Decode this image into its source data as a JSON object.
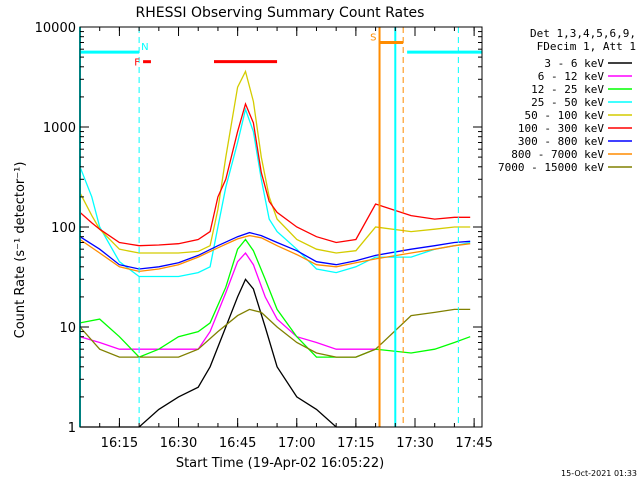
{
  "chart_data": {
    "type": "line",
    "title": "RHESSI Observing Summary Count Rates",
    "xlabel": "Start Time (19-Apr-02 16:05:22)",
    "ylabel": "Count Rate (s⁻¹ detector⁻¹)",
    "y_scale": "log",
    "ylim": [
      1,
      10000
    ],
    "xlim": [
      "16:05",
      "17:47"
    ],
    "x_ticks": [
      "16:15",
      "16:30",
      "16:45",
      "17:00",
      "17:15",
      "17:30",
      "17:45"
    ],
    "y_ticks": [
      "1",
      "10",
      "100",
      "1000",
      "10000"
    ],
    "legend_header": [
      "Det 1,3,4,5,6,9,",
      "FDecim 1, Att 1"
    ],
    "legend_position": "right",
    "timestamp": "15-Oct-2021 01:33",
    "series": [
      {
        "name": "3 - 6 keV",
        "color": "#000000",
        "x": [
          "16:05",
          "16:10",
          "16:15",
          "16:20",
          "16:25",
          "16:30",
          "16:35",
          "16:38",
          "16:42",
          "16:45",
          "16:47",
          "16:49",
          "16:52",
          "16:55",
          "17:00",
          "17:05",
          "17:10",
          "17:15",
          "17:20"
        ],
        "y": [
          1,
          1,
          1,
          1,
          1.5,
          2,
          2.5,
          4,
          10,
          20,
          30,
          24,
          10,
          4,
          2,
          1.5,
          1,
          1,
          1
        ]
      },
      {
        "name": "6 - 12 keV",
        "color": "#ff00ff",
        "x": [
          "16:05",
          "16:10",
          "16:15",
          "16:20",
          "16:25",
          "16:30",
          "16:35",
          "16:38",
          "16:42",
          "16:45",
          "16:47",
          "16:49",
          "16:52",
          "16:55",
          "17:00",
          "17:05",
          "17:10",
          "17:15",
          "17:20"
        ],
        "y": [
          8,
          7,
          6,
          6,
          6,
          6,
          6,
          9,
          22,
          45,
          55,
          42,
          20,
          12,
          8,
          7,
          6,
          6,
          6
        ]
      },
      {
        "name": "12 - 25 keV",
        "color": "#00ff00",
        "x": [
          "16:05",
          "16:10",
          "16:15",
          "16:20",
          "16:25",
          "16:30",
          "16:35",
          "16:38",
          "16:42",
          "16:45",
          "16:47",
          "16:49",
          "16:52",
          "16:55",
          "17:00",
          "17:05",
          "17:10",
          "17:15",
          "17:20",
          "17:29",
          "17:35",
          "17:40",
          "17:44"
        ],
        "y": [
          11,
          12,
          8,
          5,
          6,
          8,
          9,
          11,
          25,
          60,
          75,
          58,
          30,
          15,
          8,
          5,
          5,
          5,
          6,
          5.5,
          6,
          7,
          8
        ]
      },
      {
        "name": "25 - 50 keV",
        "color": "#00ffff",
        "x": [
          "16:05",
          "16:08",
          "16:10",
          "16:15",
          "16:20",
          "16:25",
          "16:30",
          "16:35",
          "16:38",
          "16:40",
          "16:42",
          "16:45",
          "16:47",
          "16:49",
          "16:51",
          "16:53",
          "16:55",
          "17:00",
          "17:05",
          "17:10",
          "17:15",
          "17:20",
          "17:29",
          "17:35",
          "17:40",
          "17:44"
        ],
        "y": [
          400,
          200,
          100,
          45,
          32,
          32,
          32,
          35,
          40,
          100,
          250,
          700,
          1500,
          900,
          300,
          120,
          90,
          60,
          38,
          35,
          40,
          50,
          50,
          60,
          65,
          70
        ]
      },
      {
        "name": "50 - 100 keV",
        "color": "#d4cc00",
        "x": [
          "16:05",
          "16:08",
          "16:10",
          "16:15",
          "16:20",
          "16:25",
          "16:30",
          "16:35",
          "16:38",
          "16:40",
          "16:42",
          "16:45",
          "16:47",
          "16:49",
          "16:51",
          "16:53",
          "16:55",
          "17:00",
          "17:05",
          "17:10",
          "17:15",
          "17:20",
          "17:29",
          "17:35",
          "17:40",
          "17:44"
        ],
        "y": [
          220,
          130,
          95,
          60,
          55,
          55,
          55,
          57,
          65,
          150,
          500,
          2500,
          3600,
          1800,
          500,
          200,
          120,
          75,
          60,
          55,
          58,
          100,
          90,
          95,
          100,
          100
        ]
      },
      {
        "name": "100 - 300 keV",
        "color": "#ff0000",
        "x": [
          "16:05",
          "16:08",
          "16:10",
          "16:15",
          "16:20",
          "16:25",
          "16:30",
          "16:35",
          "16:38",
          "16:40",
          "16:42",
          "16:45",
          "16:47",
          "16:49",
          "16:51",
          "16:53",
          "16:55",
          "17:00",
          "17:05",
          "17:10",
          "17:15",
          "17:20",
          "17:29",
          "17:35",
          "17:40",
          "17:44"
        ],
        "y": [
          140,
          110,
          95,
          70,
          65,
          66,
          68,
          75,
          90,
          200,
          300,
          900,
          1700,
          1100,
          350,
          180,
          140,
          100,
          80,
          70,
          75,
          170,
          130,
          120,
          125,
          125
        ]
      },
      {
        "name": "300 - 800 keV",
        "color": "#0000ff",
        "x": [
          "16:05",
          "16:10",
          "16:15",
          "16:20",
          "16:25",
          "16:30",
          "16:35",
          "16:40",
          "16:45",
          "16:48",
          "16:51",
          "16:55",
          "17:00",
          "17:05",
          "17:10",
          "17:15",
          "17:20",
          "17:29",
          "17:35",
          "17:40",
          "17:44"
        ],
        "y": [
          80,
          60,
          42,
          38,
          40,
          44,
          52,
          65,
          80,
          88,
          82,
          70,
          58,
          45,
          42,
          46,
          52,
          60,
          65,
          70,
          72
        ]
      },
      {
        "name": "800 - 7000 keV",
        "color": "#ff8c00",
        "x": [
          "16:05",
          "16:10",
          "16:15",
          "16:20",
          "16:25",
          "16:30",
          "16:35",
          "16:40",
          "16:45",
          "16:48",
          "16:51",
          "16:55",
          "17:00",
          "17:05",
          "17:10",
          "17:15",
          "17:20",
          "17:29",
          "17:35",
          "17:40",
          "17:44"
        ],
        "y": [
          75,
          55,
          40,
          36,
          38,
          42,
          50,
          62,
          76,
          82,
          78,
          65,
          53,
          42,
          40,
          44,
          48,
          55,
          60,
          65,
          68
        ]
      },
      {
        "name": "7000 - 15000 keV",
        "color": "#808000",
        "x": [
          "16:05",
          "16:10",
          "16:15",
          "16:20",
          "16:25",
          "16:30",
          "16:35",
          "16:40",
          "16:45",
          "16:48",
          "16:51",
          "16:55",
          "17:00",
          "17:05",
          "17:10",
          "17:15",
          "17:20",
          "17:29",
          "17:35",
          "17:40",
          "17:44"
        ],
        "y": [
          10,
          6,
          5,
          5,
          5,
          5,
          6,
          9,
          13,
          15,
          14,
          10,
          7,
          5.5,
          5,
          5,
          6,
          13,
          14,
          15,
          15
        ]
      }
    ],
    "flag_bars": [
      {
        "label": "N",
        "color": "#00ffff",
        "x": [
          "16:05",
          "16:20"
        ],
        "y": 5600
      },
      {
        "label": "F",
        "color": "#ff0000",
        "x": [
          "16:21",
          "16:23"
        ],
        "y": 4500
      },
      {
        "label": "",
        "color": "#ff0000",
        "x": [
          "16:39",
          "16:55"
        ],
        "y": 4500
      },
      {
        "label": "S",
        "color": "#ff8c00",
        "x": [
          "17:21",
          "17:27"
        ],
        "y": 7000
      },
      {
        "label": "",
        "color": "#00ffff",
        "x": [
          "17:28",
          "17:47"
        ],
        "y": 5600
      }
    ],
    "gaps": [
      {
        "color": "#00ffff",
        "x": [
          "16:05",
          "16:05"
        ]
      },
      {
        "color": "#ff8c00",
        "x": [
          "17:21",
          "17:21"
        ]
      },
      {
        "color": "#00ffff",
        "x": [
          "17:25",
          "17:25"
        ]
      }
    ],
    "dashed_markers": [
      {
        "color": "#00ffff",
        "x": "16:20"
      },
      {
        "color": "#ff8c00",
        "x": "17:27"
      },
      {
        "color": "#00ffff",
        "x": "17:41"
      }
    ]
  }
}
